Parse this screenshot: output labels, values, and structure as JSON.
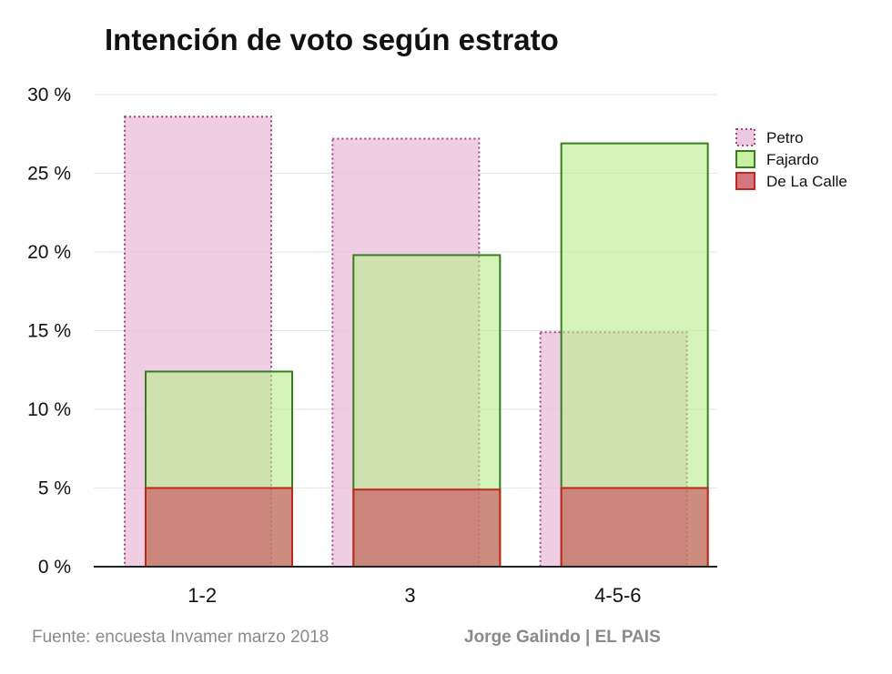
{
  "chart_data": {
    "type": "bar",
    "title": "Intención de voto según estrato",
    "xlabel": "",
    "ylabel": "",
    "categories": [
      "1-2",
      "3",
      "4-5-6"
    ],
    "yticks": [
      "0 %",
      "5 %",
      "10 %",
      "15 %",
      "20 %",
      "25 %",
      "30 %"
    ],
    "ylim": [
      0,
      30
    ],
    "grid": true,
    "legend_position": "right",
    "overlapping_bars": true,
    "series": [
      {
        "name": "Petro",
        "values": [
          28.6,
          27.2,
          14.9
        ],
        "fill": "#e9bcd9",
        "stroke": "#a0457f",
        "stroke_style": "dotted"
      },
      {
        "name": "Fajardo",
        "values": [
          12.4,
          19.8,
          26.9
        ],
        "fill": "#b8ee8c",
        "stroke": "#3a7d1e",
        "stroke_style": "solid"
      },
      {
        "name": "De La Calle",
        "values": [
          5.0,
          4.9,
          5.0
        ],
        "fill": "#c75560",
        "stroke": "#c0281b",
        "stroke_style": "solid"
      }
    ]
  },
  "footer": {
    "source": "Fuente: encuesta Invamer marzo 2018",
    "credit": "Jorge Galindo | EL PAIS"
  }
}
